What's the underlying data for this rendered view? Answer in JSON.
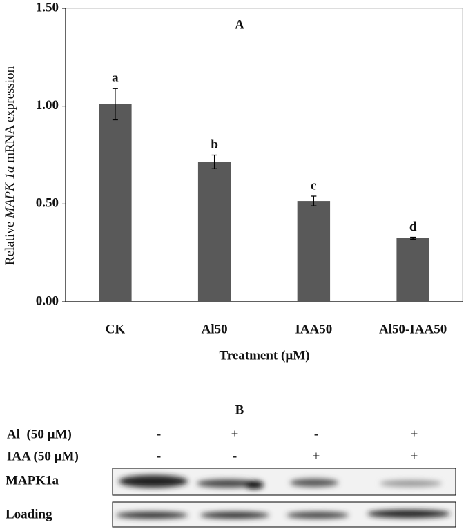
{
  "chart_data": {
    "type": "bar",
    "title": "A",
    "categories": [
      "CK",
      "Al50",
      "IAA50",
      "Al50-IAA50"
    ],
    "values": [
      1.01,
      0.715,
      0.515,
      0.325
    ],
    "errors": [
      0.08,
      0.035,
      0.025,
      0.005
    ],
    "letters": [
      "a",
      "b",
      "c",
      "d"
    ],
    "color": "#595959",
    "ylim": [
      0,
      1.5
    ],
    "yticks": [
      {
        "value": 0,
        "label": "0.00"
      },
      {
        "value": 0.5,
        "label": "0.50"
      },
      {
        "value": 1,
        "label": "1.00"
      },
      {
        "value": 1.5,
        "label": "1.50"
      }
    ],
    "ylabel": [
      "Relative ",
      "MAPK 1a",
      " mRNA expression"
    ],
    "xlabel": "Treatment (µM)"
  },
  "panel_b": {
    "title": "B",
    "rows": [
      {
        "label": "Al  (50 µM)",
        "signs": [
          "-",
          "+",
          "-",
          "+"
        ]
      },
      {
        "label": "IAA (50 µM)",
        "signs": [
          "-",
          "-",
          "+",
          "+"
        ]
      }
    ],
    "blots": [
      "MAPK1a",
      "Loading"
    ]
  }
}
